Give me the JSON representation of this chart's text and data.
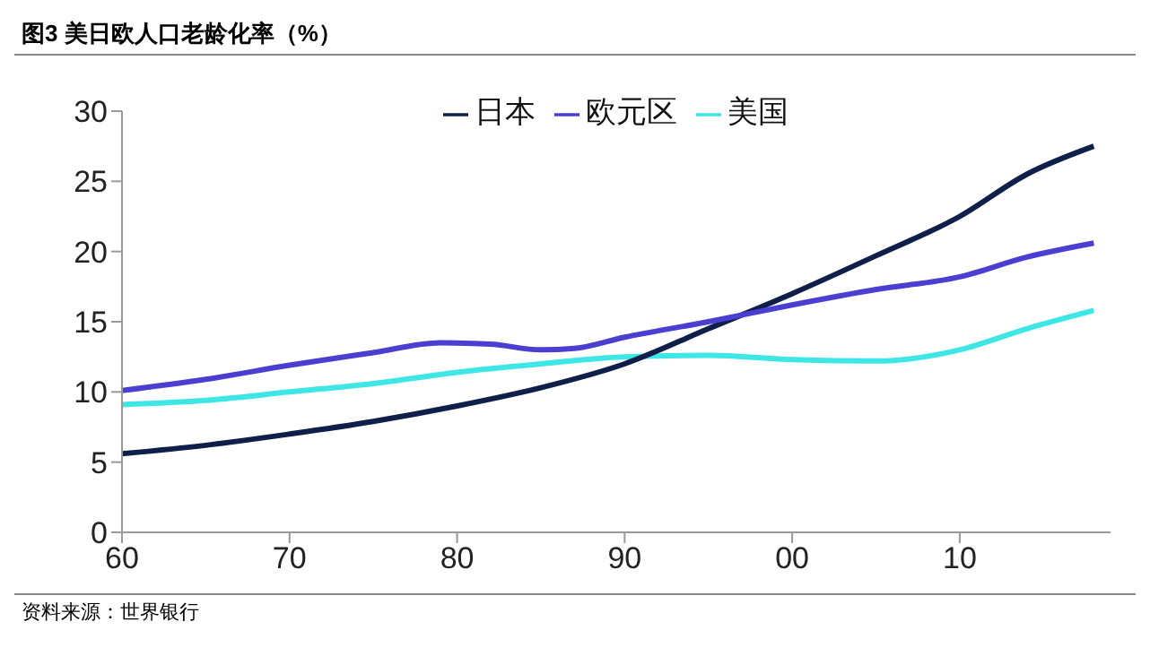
{
  "chart_data": {
    "type": "line",
    "title": "图3  美日欧人口老龄化率（%）",
    "annotations": [
      "资料来源：世界银行"
    ],
    "xlim": [
      1960,
      2019
    ],
    "xticks": [
      {
        "value": 1960,
        "label": "60"
      },
      {
        "value": 1970,
        "label": "70"
      },
      {
        "value": 1980,
        "label": "80"
      },
      {
        "value": 1990,
        "label": "90"
      },
      {
        "value": 2000,
        "label": "00"
      },
      {
        "value": 2010,
        "label": "10"
      }
    ],
    "ylim": [
      0,
      30
    ],
    "yticks": [
      0,
      5,
      10,
      15,
      20,
      25,
      30
    ],
    "grid": false,
    "legend": "top",
    "marker": "none",
    "line_style": "solid",
    "series": [
      {
        "name": "美国",
        "color": "#3ee6e6",
        "x": [
          1960,
          1965,
          1970,
          1975,
          1980,
          1985,
          1990,
          1995,
          2000,
          2005,
          2010,
          2014,
          2018
        ],
        "values": [
          9.1,
          9.4,
          10.0,
          10.6,
          11.4,
          12.0,
          12.5,
          12.6,
          12.3,
          12.2,
          13.0,
          14.5,
          15.8
        ]
      },
      {
        "name": "日本",
        "color": "#0e1f4a",
        "x": [
          1960,
          1965,
          1970,
          1975,
          1980,
          1985,
          1990,
          1995,
          2000,
          2005,
          2010,
          2014,
          2018
        ],
        "values": [
          5.6,
          6.2,
          7.0,
          7.9,
          9.0,
          10.3,
          12.0,
          14.5,
          17.0,
          19.7,
          22.5,
          25.5,
          27.5
        ]
      },
      {
        "name": "欧元区",
        "color": "#4a3fd0",
        "x": [
          1960,
          1965,
          1970,
          1975,
          1979,
          1982,
          1985,
          1987,
          1990,
          1995,
          2000,
          2005,
          2010,
          2014,
          2018
        ],
        "values": [
          10.1,
          10.9,
          11.9,
          12.8,
          13.5,
          13.4,
          13.0,
          13.1,
          13.9,
          15.0,
          16.2,
          17.3,
          18.2,
          19.6,
          20.6
        ]
      }
    ]
  }
}
